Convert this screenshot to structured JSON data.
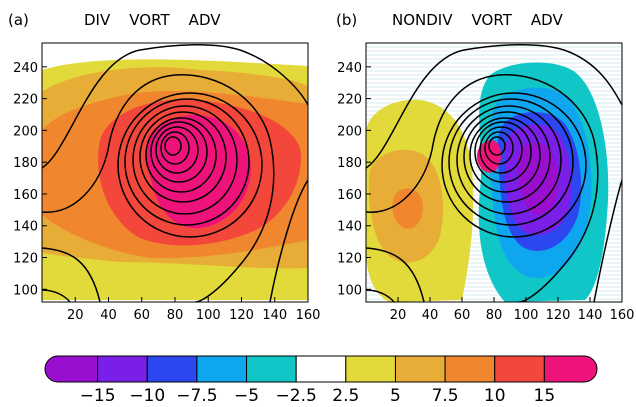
{
  "chart_data": [
    {
      "type": "heatmap",
      "panel_label": "(a)",
      "title": "DIV    VORT    ADV",
      "x_ticks": [
        20,
        40,
        60,
        80,
        100,
        120,
        140,
        160
      ],
      "y_ticks": [
        100,
        120,
        140,
        160,
        180,
        200,
        220,
        240
      ],
      "xlim": [
        0,
        160
      ],
      "ylim": [
        92,
        255
      ],
      "shaded_field_peak": {
        "x": 90,
        "y": 178,
        "value": 15
      },
      "contour_center": {
        "x": 82,
        "y": 182
      },
      "shading_levels": [
        2.5,
        5,
        7.5,
        10,
        15
      ]
    },
    {
      "type": "heatmap",
      "panel_label": "(b)",
      "title": "NONDIV    VORT    ADV",
      "x_ticks": [
        20,
        40,
        60,
        80,
        100,
        120,
        140,
        160
      ],
      "y_ticks": [
        100,
        120,
        140,
        160,
        180,
        200,
        220,
        240
      ],
      "xlim": [
        0,
        160
      ],
      "ylim": [
        92,
        255
      ],
      "shaded_field_positive_peak": {
        "x": 35,
        "y": 150,
        "value": 7.5
      },
      "shaded_field_negative_peak": {
        "x": 112,
        "y": 170,
        "value": -15
      },
      "contour_center": {
        "x": 82,
        "y": 182
      },
      "shading_levels": [
        -15,
        -10,
        -7.5,
        -5,
        -2.5,
        2.5,
        5,
        7.5,
        10,
        15
      ]
    }
  ],
  "colorbar": {
    "labels": [
      "−15",
      "−10",
      "−7.5",
      "−5",
      "−2.5",
      "2.5",
      "5",
      "7.5",
      "10",
      "15"
    ],
    "colors": [
      "#9a0fcf",
      "#7a1fe8",
      "#2c46f0",
      "#0fa6f0",
      "#10c6c6",
      "#ffffff",
      "#e2d93a",
      "#e8ad36",
      "#f0872e",
      "#f2473a",
      "#ee137a"
    ]
  }
}
